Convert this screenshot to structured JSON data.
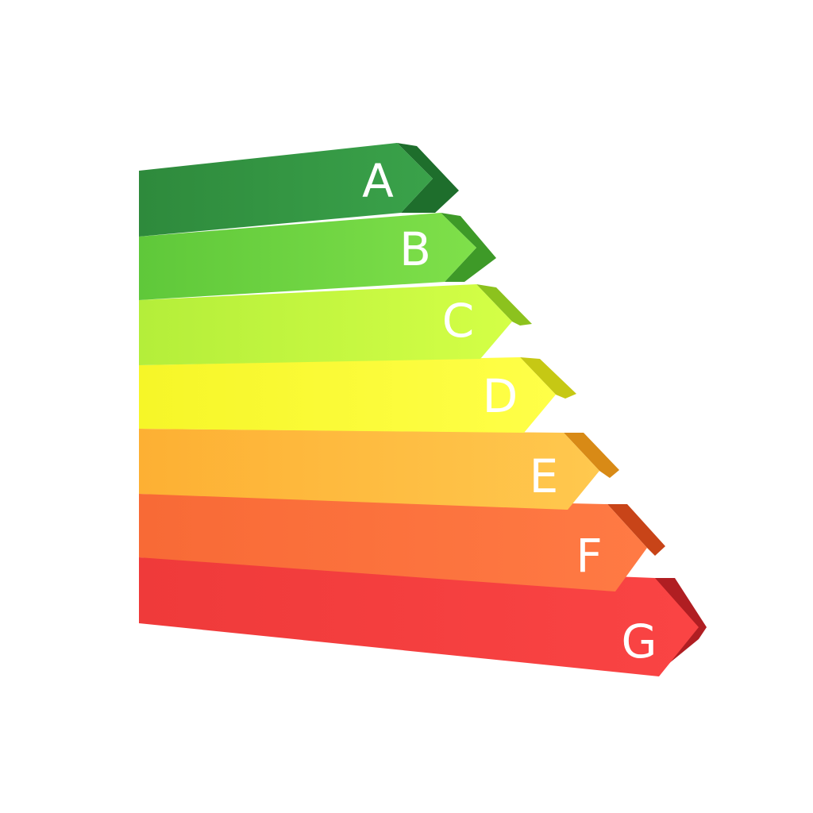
{
  "ratings": [
    "A",
    "B",
    "C",
    "D",
    "E",
    "F",
    "G"
  ]
}
